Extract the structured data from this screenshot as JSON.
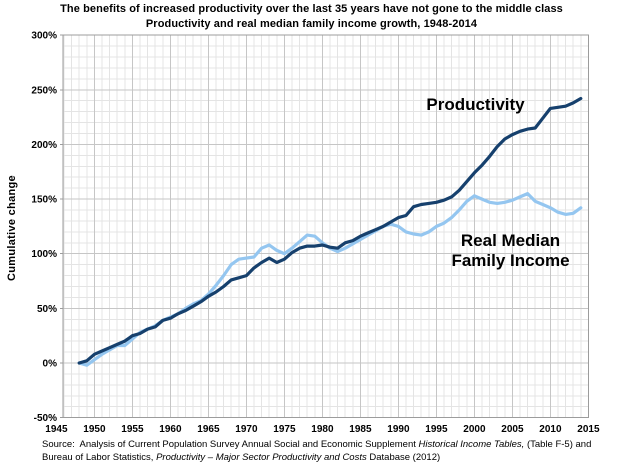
{
  "title": "The benefits of increased productivity over the last 35 years have not gone to the middle class",
  "subtitle": "Productivity and real median family income growth, 1948-2014",
  "y_axis_title": "Cumulative change",
  "annotations": {
    "productivity_label": "Productivity",
    "income_label_line1": "Real Median",
    "income_label_line2": "Family Income"
  },
  "source": {
    "line1_parts": [
      {
        "text": "Source:  Analysis of Current Population Survey Annual Social and Economic Supplement ",
        "italic": false
      },
      {
        "text": "Historical Income Tables,",
        "italic": true
      },
      {
        "text": " (Table F-5) and",
        "italic": false
      }
    ],
    "line2_parts": [
      {
        "text": "Bureau of Labor Statistics, ",
        "italic": false
      },
      {
        "text": "Productivity – Major Sector Productivity and Costs",
        "italic": true
      },
      {
        "text": " Database (2012)",
        "italic": false
      }
    ]
  },
  "colors": {
    "productivity_line": "#16406D",
    "income_line": "#94C6F0",
    "grid_minor": "#E4E4E4",
    "grid_major": "#C6C6C6",
    "plot_border": "#9C9C9C"
  },
  "chart_data": {
    "type": "line",
    "title": "Productivity and real median family income growth, 1948-2014",
    "xlabel": "",
    "ylabel": "Cumulative change",
    "xlim": [
      1945,
      2015
    ],
    "ylim": [
      -50,
      300
    ],
    "x_ticks": [
      1945,
      1950,
      1955,
      1960,
      1965,
      1970,
      1975,
      1980,
      1985,
      1990,
      1995,
      2000,
      2005,
      2010,
      2015
    ],
    "y_ticks": [
      -50,
      0,
      50,
      100,
      150,
      200,
      250,
      300
    ],
    "y_tick_suffix": "%",
    "grid": {
      "minor_x_step_years": 1,
      "minor_y_step_pct": 10,
      "major_x_step_years": 5,
      "major_y_step_pct": 50
    },
    "legend": "direct line labels, no legend box",
    "years_start": 1948,
    "years_end": 2014,
    "series": [
      {
        "name": "Productivity",
        "color": "#16406D",
        "values": [
          0,
          2,
          8,
          11,
          14,
          17,
          20,
          25,
          27,
          31,
          33,
          39,
          41,
          45,
          48,
          52,
          56,
          61,
          65,
          70,
          76,
          78,
          80,
          87,
          92,
          96,
          92,
          95,
          101,
          105,
          107,
          107,
          108,
          106,
          105,
          110,
          112,
          116,
          119,
          122,
          125,
          129,
          133,
          135,
          143,
          145,
          146,
          147,
          149,
          152,
          158,
          166,
          174,
          181,
          189,
          198,
          205,
          209,
          212,
          214,
          215,
          224,
          233,
          234,
          235,
          238,
          242
        ]
      },
      {
        "name": "Real Median Family Income",
        "color": "#94C6F0",
        "values": [
          0,
          -2,
          3,
          8,
          12,
          16,
          16,
          22,
          28,
          31,
          34,
          39,
          42,
          45,
          50,
          54,
          57,
          63,
          71,
          80,
          90,
          95,
          96,
          97,
          105,
          108,
          103,
          100,
          105,
          111,
          117,
          116,
          110,
          105,
          102,
          105,
          109,
          113,
          117,
          121,
          125,
          127,
          125,
          120,
          118,
          117,
          120,
          125,
          128,
          133,
          140,
          148,
          153,
          150,
          147,
          146,
          147,
          149,
          152,
          155,
          148,
          145,
          142,
          138,
          136,
          137,
          142
        ]
      }
    ]
  }
}
